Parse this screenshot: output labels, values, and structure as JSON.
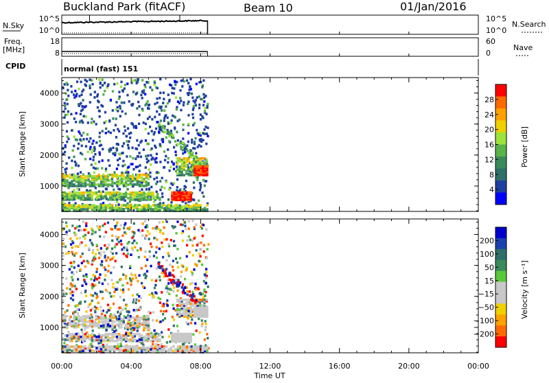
{
  "header": {
    "station": "Buckland Park (fitACF)",
    "beam": "Beam 10",
    "date": "01/Jan/2016"
  },
  "nsky_panel": {
    "left_label": "N.Sky",
    "right_label": "N.Search",
    "left_ticks": [
      "10^5",
      "10^0"
    ],
    "right_ticks": [
      "10^5",
      "10^0"
    ]
  },
  "freq_panel": {
    "left_label_line1": "Freq.",
    "left_label_line2": "[MHz]",
    "right_label": "Nave",
    "left_ticks": [
      "18",
      "8"
    ],
    "right_ticks": [
      "60",
      "0"
    ]
  },
  "cpid_panel": {
    "label": "CPID",
    "text": "normal (fast) 151"
  },
  "chart_data": [
    {
      "type": "heatmap",
      "name": "power",
      "ylabel": "Slant Range [km]",
      "xlabel": "",
      "yticks": [
        "1000",
        "2000",
        "3000",
        "4000"
      ],
      "ylim": [
        180,
        4500
      ],
      "xticks": [
        "00:00",
        "04:00",
        "08:00",
        "12:00",
        "16:00",
        "20:00",
        "00:00"
      ],
      "xlim_hours": [
        0,
        24
      ],
      "data_end_hour": 8.4,
      "colorbar": {
        "label": "Power [dB]",
        "ticks": [
          "4",
          "8",
          "12",
          "16",
          "20",
          "24",
          "28"
        ],
        "colors": [
          "#0000ff",
          "#1e3fa0",
          "#2e6f6a",
          "#3a8a5c",
          "#59b447",
          "#9be33c",
          "#f1d000",
          "#ffa100",
          "#ff6a00",
          "#ff0000"
        ]
      }
    },
    {
      "type": "heatmap",
      "name": "velocity",
      "ylabel": "Slant Range [km]",
      "xlabel": "Time UT",
      "yticks": [
        "1000",
        "2000",
        "3000",
        "4000"
      ],
      "ylim": [
        180,
        4500
      ],
      "xticks": [
        "00:00",
        "04:00",
        "08:00",
        "12:00",
        "16:00",
        "20:00",
        "00:00"
      ],
      "xlim_hours": [
        0,
        24
      ],
      "data_end_hour": 8.4,
      "colorbar": {
        "label": "Velocity [m s⁻¹]",
        "ticks": [
          "200",
          "100",
          "50",
          "15",
          "−15",
          "−50",
          "−100",
          "−200"
        ],
        "colors": [
          "#0000cc",
          "#1a40b0",
          "#2e6f6a",
          "#3a8a5c",
          "#59c83a",
          "#c8c8c8",
          "#c8c8c8",
          "#f1d000",
          "#ffa100",
          "#ff6a00",
          "#ff0000"
        ]
      }
    }
  ]
}
